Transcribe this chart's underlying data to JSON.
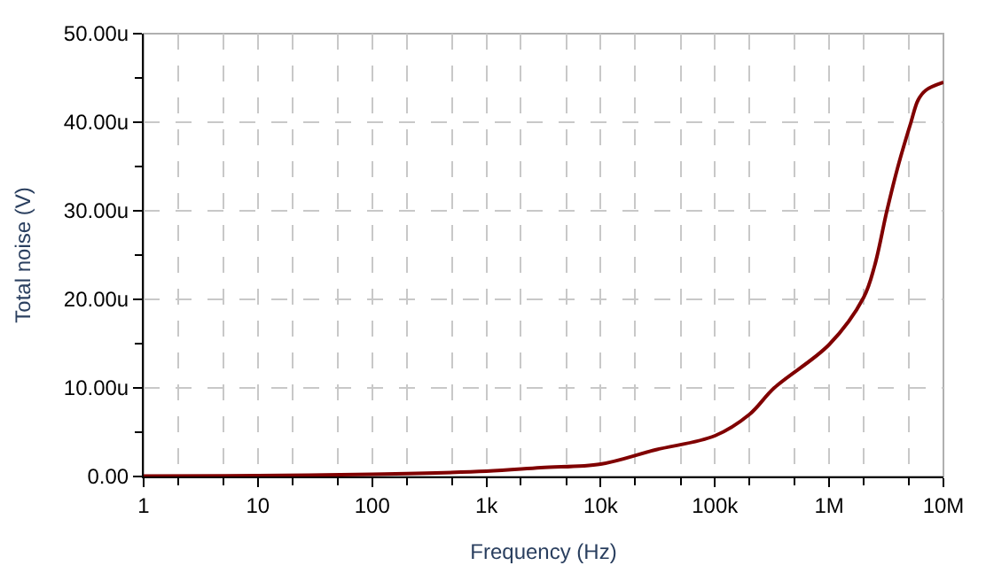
{
  "chart_data": {
    "type": "line",
    "xlabel": "Frequency (Hz)",
    "ylabel": "Total noise (V)",
    "log": "x",
    "grid": true,
    "marker": "none",
    "line_style": "solid",
    "xlim": [
      1,
      10000000
    ],
    "xticks": [
      {
        "value": 1,
        "label": "1"
      },
      {
        "value": 10,
        "label": "10"
      },
      {
        "value": 100,
        "label": "100"
      },
      {
        "value": 1000,
        "label": "1k"
      },
      {
        "value": 10000,
        "label": "10k"
      },
      {
        "value": 100000,
        "label": "100k"
      },
      {
        "value": 1000000,
        "label": "1M"
      },
      {
        "value": 10000000,
        "label": "10M"
      }
    ],
    "ylim": [
      0,
      50
    ],
    "yticks": [
      {
        "value": 0,
        "label": "0.00"
      },
      {
        "value": 10,
        "label": "10.00u"
      },
      {
        "value": 20,
        "label": "20.00u"
      },
      {
        "value": 30,
        "label": "30.00u"
      },
      {
        "value": 40,
        "label": "40.00u"
      },
      {
        "value": 50,
        "label": "50.00u"
      }
    ],
    "x": [
      1,
      10,
      100,
      1000,
      3000,
      10000,
      30000,
      100000,
      200000,
      330000,
      1000000,
      2000000,
      2500000,
      3200000,
      4000000,
      5200000,
      6000000,
      7000000,
      10000000
    ],
    "series": [
      {
        "color": "#800000",
        "values": [
          0.05,
          0.1,
          0.25,
          0.6,
          1.0,
          1.4,
          3.0,
          4.6,
          7.0,
          10.0,
          14.9,
          20.2,
          23.8,
          30.0,
          35.0,
          40.0,
          42.5,
          43.6,
          44.5
        ]
      }
    ]
  }
}
